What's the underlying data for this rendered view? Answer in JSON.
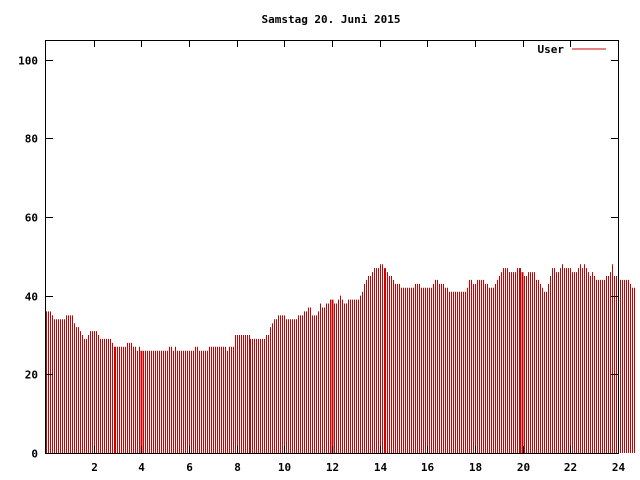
{
  "chart_data": {
    "type": "bar",
    "title": "Samstag 20. Juni 2015",
    "xlabel": "",
    "ylabel": "",
    "xlim": [
      0,
      24
    ],
    "ylim": [
      0,
      105
    ],
    "x_ticks": [
      2,
      4,
      6,
      8,
      10,
      12,
      14,
      16,
      18,
      20,
      22,
      24
    ],
    "y_ticks": [
      0,
      20,
      40,
      60,
      80,
      100
    ],
    "grid": false,
    "legend_position": "top-right",
    "series": [
      {
        "name": "User",
        "color": "#cc0000",
        "x_step_hours": 0.0833,
        "values": [
          36,
          36,
          36,
          35,
          34,
          34,
          34,
          34,
          34,
          34,
          35,
          35,
          35,
          35,
          33,
          32,
          32,
          31,
          30,
          29,
          29,
          30,
          31,
          31,
          31,
          31,
          30,
          29,
          29,
          29,
          29,
          29,
          29,
          28,
          27,
          27,
          27,
          27,
          27,
          27,
          27,
          28,
          28,
          28,
          27,
          27,
          26,
          27,
          26,
          26,
          26,
          26,
          26,
          26,
          26,
          26,
          26,
          26,
          26,
          26,
          26,
          26,
          27,
          27,
          26,
          27,
          26,
          26,
          26,
          26,
          26,
          26,
          26,
          26,
          26,
          27,
          27,
          26,
          26,
          26,
          26,
          26,
          27,
          27,
          27,
          27,
          27,
          27,
          27,
          27,
          27,
          26,
          27,
          27,
          27,
          30,
          30,
          30,
          30,
          30,
          30,
          30,
          30,
          29,
          29,
          29,
          29,
          29,
          29,
          29,
          29,
          30,
          30,
          32,
          33,
          34,
          34,
          35,
          35,
          35,
          35,
          34,
          34,
          34,
          34,
          34,
          34,
          35,
          35,
          35,
          36,
          36,
          37,
          37,
          35,
          35,
          35,
          36,
          38,
          37,
          37,
          38,
          38,
          39,
          39,
          38,
          38,
          39,
          40,
          39,
          38,
          38,
          39,
          39,
          39,
          39,
          39,
          39,
          40,
          41,
          43,
          44,
          45,
          45,
          46,
          47,
          47,
          47,
          48,
          48,
          47,
          47,
          46,
          45,
          45,
          44,
          43,
          43,
          43,
          42,
          42,
          42,
          42,
          42,
          42,
          42,
          43,
          43,
          43,
          42,
          42,
          42,
          42,
          42,
          42,
          43,
          44,
          44,
          43,
          43,
          43,
          42,
          42,
          41,
          41,
          41,
          41,
          41,
          41,
          41,
          41,
          41,
          42,
          44,
          44,
          43,
          43,
          44,
          44,
          44,
          44,
          43,
          43,
          42,
          42,
          42,
          43,
          44,
          45,
          46,
          47,
          47,
          47,
          46,
          46,
          46,
          46,
          47,
          47,
          47,
          46,
          45,
          45,
          46,
          46,
          46,
          46,
          44,
          44,
          43,
          42,
          41,
          41,
          43,
          45,
          47,
          47,
          46,
          46,
          47,
          48,
          47,
          47,
          47,
          47,
          46,
          46,
          46,
          47,
          48,
          47,
          48,
          47,
          46,
          45,
          46,
          45,
          44,
          44,
          44,
          44,
          44,
          45,
          45,
          46,
          48,
          45,
          45,
          44,
          44,
          44,
          44,
          44,
          44,
          43,
          42,
          42
        ]
      }
    ]
  }
}
